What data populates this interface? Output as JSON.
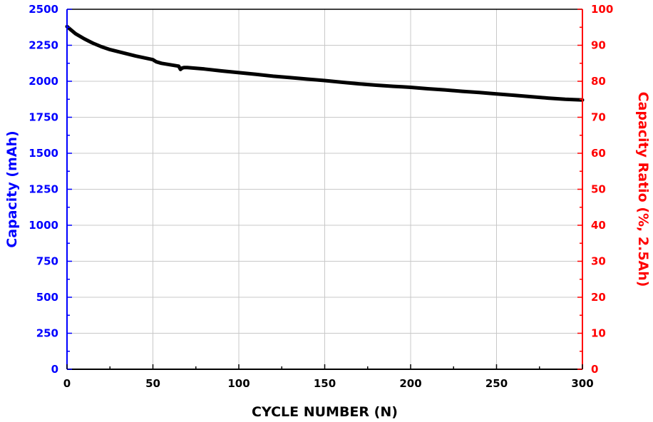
{
  "colors": {
    "left_axis": "#0000ff",
    "right_axis": "#ff0000",
    "bottom_axis": "#000000",
    "series": "#000000",
    "grid": "#c8c8c8"
  },
  "chart_data": {
    "type": "line",
    "title": "",
    "xlabel": "CYCLE NUMBER (N)",
    "ylabel": "Capacity (mAh)",
    "y2label": "Capacity Ratio (%, 2.5Ah)",
    "xlim": [
      0,
      300
    ],
    "ylim": [
      0,
      2500
    ],
    "y2lim": [
      0,
      100
    ],
    "grid": true,
    "xticks": [
      "0",
      "50",
      "100",
      "150",
      "200",
      "250",
      "300"
    ],
    "yticks": [
      "0",
      "250",
      "500",
      "750",
      "1000",
      "1250",
      "1500",
      "1750",
      "2000",
      "2250",
      "2500"
    ],
    "y2ticks": [
      "0",
      "10",
      "20",
      "30",
      "40",
      "50",
      "60",
      "70",
      "80",
      "90",
      "100"
    ],
    "series": [
      {
        "x": [
          0,
          2,
          5,
          10,
          15,
          20,
          25,
          30,
          40,
          50,
          52,
          55,
          60,
          65,
          66,
          67,
          68,
          70,
          80,
          90,
          100,
          110,
          120,
          130,
          140,
          150,
          160,
          170,
          180,
          190,
          195,
          200,
          210,
          220,
          230,
          240,
          250,
          260,
          270,
          280,
          290,
          300
        ],
        "values": [
          2380,
          2360,
          2330,
          2295,
          2265,
          2240,
          2220,
          2205,
          2175,
          2150,
          2135,
          2125,
          2115,
          2105,
          2082,
          2092,
          2095,
          2095,
          2085,
          2072,
          2060,
          2048,
          2035,
          2025,
          2015,
          2005,
          1993,
          1982,
          1973,
          1965,
          1962,
          1958,
          1948,
          1940,
          1930,
          1922,
          1912,
          1903,
          1893,
          1883,
          1875,
          1870
        ]
      }
    ]
  }
}
